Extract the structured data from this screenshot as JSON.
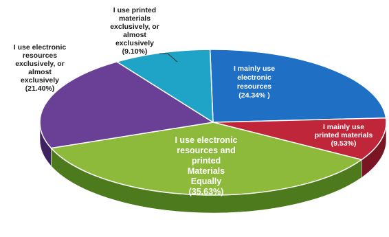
{
  "chart_data": {
    "type": "pie",
    "title": "",
    "slices": [
      {
        "label_lines": [
          "I mainly use",
          "electronic",
          "resources",
          "(24.34% )"
        ],
        "value": 24.34,
        "color": "#1F6FC4",
        "side_color": "#0E4A8C",
        "label_color": "#ffffff"
      },
      {
        "label_lines": [
          "I mainly use",
          "printed materials",
          "(9.53%)"
        ],
        "value": 9.53,
        "color": "#C0263A",
        "side_color": "#7A1524",
        "label_color": "#ffffff"
      },
      {
        "label_lines": [
          "I use electronic",
          "resources and",
          "printed",
          "Materials",
          "Equally",
          "(35.63%)"
        ],
        "value": 35.63,
        "color": "#8DBA3A",
        "side_color": "#4E7A1E",
        "label_color": "#ffffff"
      },
      {
        "label_lines": [
          "I use electronic",
          "resources",
          "exclusively, or",
          "almost",
          "exclusively",
          "(21.40%)"
        ],
        "value": 21.4,
        "color": "#6A3F96",
        "side_color": "#3F2260",
        "label_color": "#1a1a1a"
      },
      {
        "label_lines": [
          "I use printed",
          "materials",
          "exclusively, or",
          "almost",
          "exclusively",
          "(9.10%)"
        ],
        "value": 9.1,
        "color": "#1FA3C7",
        "side_color": "#0F6A85",
        "label_color": "#1a1a1a"
      }
    ]
  }
}
